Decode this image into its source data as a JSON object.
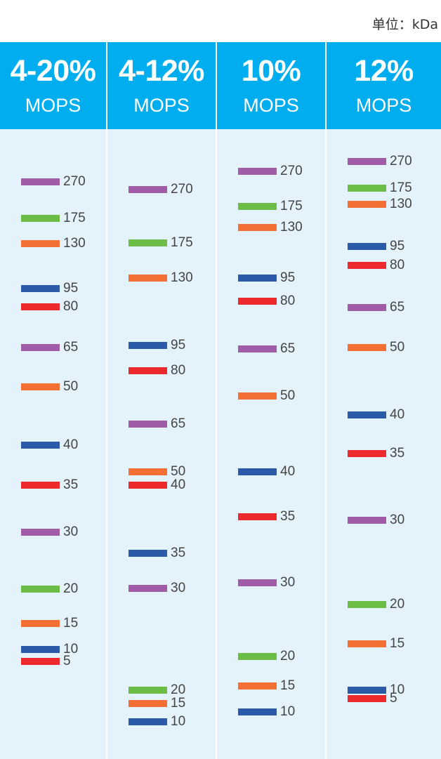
{
  "unit_label": "单位：kDa",
  "columns": [
    {
      "percent": "4-20%",
      "buffer": "MOPS",
      "bands": [
        {
          "label": "270",
          "color": "#a05ca7"
        },
        {
          "label": "175",
          "color": "#6bbd45"
        },
        {
          "label": "130",
          "color": "#f36f33"
        },
        {
          "label": "95",
          "color": "#2a5aa8"
        },
        {
          "label": "80",
          "color": "#ec2a2d"
        },
        {
          "label": "65",
          "color": "#a05ca7"
        },
        {
          "label": "50",
          "color": "#f36f33"
        },
        {
          "label": "40",
          "color": "#2a5aa8"
        },
        {
          "label": "35",
          "color": "#ec2a2d"
        },
        {
          "label": "30",
          "color": "#a05ca7"
        },
        {
          "label": "20",
          "color": "#6bbd45"
        },
        {
          "label": "15",
          "color": "#f36f33"
        },
        {
          "label": "10",
          "color": "#2a5aa8"
        },
        {
          "label": "5",
          "color": "#ec2a2d"
        }
      ]
    },
    {
      "percent": "4-12%",
      "buffer": "MOPS",
      "bands": [
        {
          "label": "270",
          "color": "#a05ca7"
        },
        {
          "label": "175",
          "color": "#6bbd45"
        },
        {
          "label": "130",
          "color": "#f36f33"
        },
        {
          "label": "95",
          "color": "#2a5aa8"
        },
        {
          "label": "80",
          "color": "#ec2a2d"
        },
        {
          "label": "65",
          "color": "#a05ca7"
        },
        {
          "label": "50",
          "color": "#f36f33"
        },
        {
          "label": "40",
          "color": "#ec2a2d"
        },
        {
          "label": "35",
          "color": "#2a5aa8"
        },
        {
          "label": "30",
          "color": "#a05ca7"
        },
        {
          "label": "20",
          "color": "#6bbd45"
        },
        {
          "label": "15",
          "color": "#f36f33"
        },
        {
          "label": "10",
          "color": "#2a5aa8"
        }
      ]
    },
    {
      "percent": "10%",
      "buffer": "MOPS",
      "bands": [
        {
          "label": "270",
          "color": "#a05ca7"
        },
        {
          "label": "175",
          "color": "#6bbd45"
        },
        {
          "label": "130",
          "color": "#f36f33"
        },
        {
          "label": "95",
          "color": "#2a5aa8"
        },
        {
          "label": "80",
          "color": "#ec2a2d"
        },
        {
          "label": "65",
          "color": "#a05ca7"
        },
        {
          "label": "50",
          "color": "#f36f33"
        },
        {
          "label": "40",
          "color": "#2a5aa8"
        },
        {
          "label": "35",
          "color": "#ec2a2d"
        },
        {
          "label": "30",
          "color": "#a05ca7"
        },
        {
          "label": "20",
          "color": "#6bbd45"
        },
        {
          "label": "15",
          "color": "#f36f33"
        },
        {
          "label": "10",
          "color": "#2a5aa8"
        }
      ]
    },
    {
      "percent": "12%",
      "buffer": "MOPS",
      "bands": [
        {
          "label": "270",
          "color": "#a05ca7"
        },
        {
          "label": "175",
          "color": "#6bbd45"
        },
        {
          "label": "130",
          "color": "#f36f33"
        },
        {
          "label": "95",
          "color": "#2a5aa8"
        },
        {
          "label": "80",
          "color": "#ec2a2d"
        },
        {
          "label": "65",
          "color": "#a05ca7"
        },
        {
          "label": "50",
          "color": "#f36f33"
        },
        {
          "label": "40",
          "color": "#2a5aa8"
        },
        {
          "label": "35",
          "color": "#ec2a2d"
        },
        {
          "label": "30",
          "color": "#a05ca7"
        },
        {
          "label": "20",
          "color": "#6bbd45"
        },
        {
          "label": "15",
          "color": "#f36f33"
        },
        {
          "label": "10",
          "color": "#2a5aa8"
        },
        {
          "label": "5",
          "color": "#ec2a2d"
        }
      ]
    }
  ]
}
